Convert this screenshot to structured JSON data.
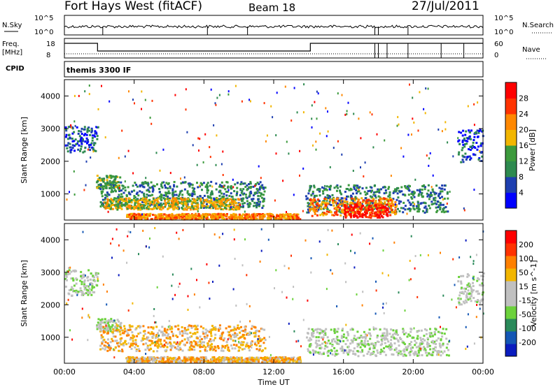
{
  "header": {
    "station": "Fort Hays West (fitACF)",
    "beam": "Beam 18",
    "date": "27/Jul/2011"
  },
  "status_panels": {
    "nsky_label": "N.Sky",
    "nsearch_label": "N.Search",
    "freq_label": "Freq.",
    "freq_unit": "[MHz]",
    "nave_label": "Nave",
    "cpid_label": "CPID",
    "cpid_text": "themis 3300 IF",
    "noise_ticks_left": [
      "10^5",
      "10^0"
    ],
    "noise_ticks_right": [
      "10^5",
      "10^0"
    ],
    "freq_ticks": [
      "18",
      "8"
    ],
    "nave_ticks": [
      "60",
      "0"
    ]
  },
  "colors": {
    "power_scale": [
      "#0000ff",
      "#1e3fb0",
      "#2e8a4f",
      "#3c9a3c",
      "#f2b600",
      "#ff8800",
      "#ff3300",
      "#ff0000"
    ],
    "velocity_scale": [
      "#0a1cbf",
      "#1457b5",
      "#2a8a5a",
      "#6cd23c",
      "#c0c0c0",
      "#c0c0c0",
      "#f2b600",
      "#ff8000",
      "#ff3300",
      "#ff0000"
    ]
  },
  "chart_data": [
    {
      "type": "heatmap",
      "title": "Power",
      "xlabel": "Time UT",
      "ylabel": "Slant Range [km]",
      "x_ticks": [
        "00:00",
        "04:00",
        "08:00",
        "12:00",
        "16:00",
        "20:00",
        "00:00"
      ],
      "y_ticks": [
        "1000",
        "2000",
        "3000",
        "4000"
      ],
      "ylim": [
        200,
        4500
      ],
      "colorbar_label": "Power [dB]",
      "colorbar_ticks": [
        "4",
        "8",
        "12",
        "16",
        "20",
        "24",
        "28"
      ],
      "blobs": [
        {
          "t0": 0.0,
          "t1": 1.9,
          "r0": 2300,
          "r1": 3100,
          "level": 1
        },
        {
          "t0": 1.8,
          "t1": 3.2,
          "r0": 1200,
          "r1": 1600,
          "level": 3
        },
        {
          "t0": 2.0,
          "t1": 11.5,
          "r0": 600,
          "r1": 1400,
          "level": 2
        },
        {
          "t0": 2.2,
          "t1": 10.0,
          "r0": 550,
          "r1": 900,
          "level": 4
        },
        {
          "t0": 3.5,
          "t1": 13.5,
          "r0": 250,
          "r1": 420,
          "level": 5
        },
        {
          "t0": 13.8,
          "t1": 22.0,
          "r0": 450,
          "r1": 1300,
          "level": 2
        },
        {
          "t0": 14.0,
          "t1": 19.0,
          "r0": 350,
          "r1": 900,
          "level": 5
        },
        {
          "t0": 16.0,
          "t1": 18.5,
          "r0": 300,
          "r1": 700,
          "level": 7
        },
        {
          "t0": 22.5,
          "t1": 24.0,
          "r0": 2000,
          "r1": 3000,
          "level": 1
        }
      ]
    },
    {
      "type": "heatmap",
      "title": "Velocity",
      "xlabel": "Time UT",
      "ylabel": "Slant Range [km]",
      "x_ticks": [
        "00:00",
        "04:00",
        "08:00",
        "12:00",
        "16:00",
        "20:00",
        "00:00"
      ],
      "y_ticks": [
        "1000",
        "2000",
        "3000",
        "4000"
      ],
      "ylim": [
        200,
        4500
      ],
      "colorbar_label": "Velocity [m s^-1]",
      "colorbar_ticks": [
        "200",
        "100",
        "50",
        "15",
        "-15",
        "-50",
        "-100",
        "-200"
      ],
      "blobs": [
        {
          "t0": 0.0,
          "t1": 1.9,
          "r0": 2300,
          "r1": 3100,
          "level": 4
        },
        {
          "t0": 1.8,
          "t1": 3.2,
          "r0": 1200,
          "r1": 1600,
          "level": 4
        },
        {
          "t0": 2.0,
          "t1": 11.5,
          "r0": 600,
          "r1": 1400,
          "level": 6
        },
        {
          "t0": 3.5,
          "t1": 13.5,
          "r0": 250,
          "r1": 420,
          "level": 6
        },
        {
          "t0": 13.8,
          "t1": 22.0,
          "r0": 450,
          "r1": 1300,
          "level": 4
        },
        {
          "t0": 22.5,
          "t1": 24.0,
          "r0": 2000,
          "r1": 3000,
          "level": 4
        }
      ]
    }
  ]
}
